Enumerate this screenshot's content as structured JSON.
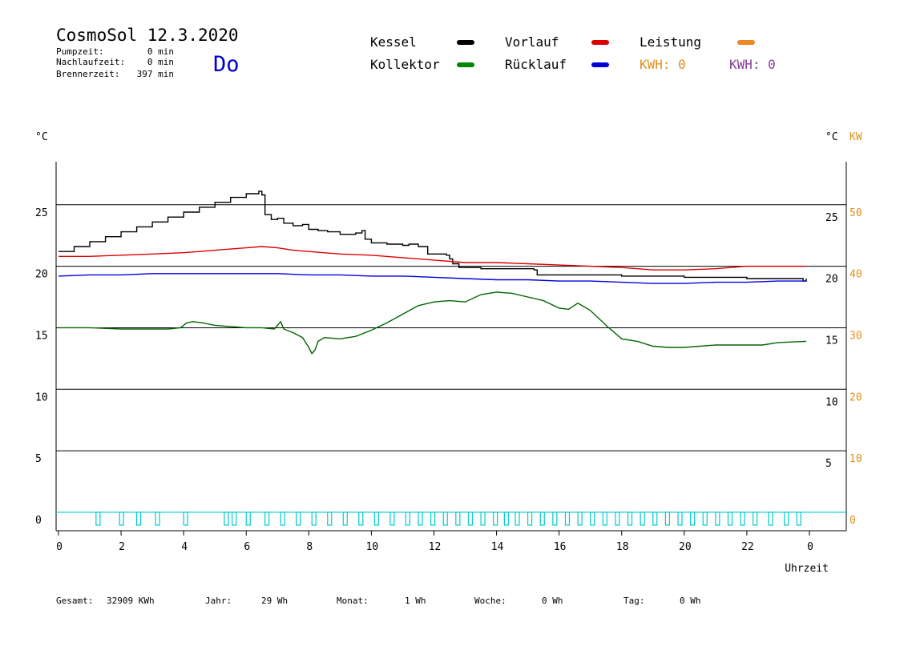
{
  "header": {
    "title": "CosmoSol 12.3.2020",
    "day": "Do",
    "info": [
      {
        "label": "Pumpzeit:",
        "value": "0 min"
      },
      {
        "label": "Nachlaufzeit:",
        "value": "0 min"
      },
      {
        "label": "Brennerzeit:",
        "value": "397 min"
      }
    ]
  },
  "legend": {
    "items": [
      {
        "label": "Kessel",
        "color": "#000000"
      },
      {
        "label": "Vorlauf",
        "color": "#dd0000"
      },
      {
        "label": "Leistung",
        "color": "#ee8822"
      },
      {
        "label": "Kollektor",
        "color": "#008800"
      },
      {
        "label": "Rücklauf",
        "color": "#0000dd"
      }
    ],
    "kwh_orange": "KWH: 0",
    "kwh_purple": "KWH: 0"
  },
  "axes": {
    "left_unit": "°C",
    "right_unit": "°C",
    "right_unit2": "KW",
    "xlabel": "Uhrzeit"
  },
  "footer": [
    {
      "label": "Gesamt:",
      "value": "32909 KWh"
    },
    {
      "label": "Jahr:",
      "value": "29 Wh"
    },
    {
      "label": "Monat:",
      "value": "1 Wh"
    },
    {
      "label": "Woche:",
      "value": "0 Wh"
    },
    {
      "label": "Tag:",
      "value": "0 Wh"
    }
  ],
  "chart_data": {
    "type": "line",
    "x_range": [
      0,
      24
    ],
    "y_left_range": [
      -1.5,
      28.5
    ],
    "x_ticks": [
      "0",
      "2",
      "4",
      "6",
      "8",
      "10",
      "12",
      "14",
      "16",
      "18",
      "20",
      "22",
      "0"
    ],
    "y_left_ticks": [
      "0",
      "5",
      "10",
      "15",
      "20",
      "25"
    ],
    "y_right_ticks": [
      "5",
      "10",
      "15",
      "20",
      "25"
    ],
    "y_right_kw_ticks": [
      "0",
      "10",
      "20",
      "30",
      "40",
      "50"
    ],
    "grid": true,
    "series": [
      {
        "name": "Kessel",
        "color": "#000000",
        "step": true,
        "points": [
          [
            0,
            21.2
          ],
          [
            0.5,
            21.6
          ],
          [
            1,
            22.0
          ],
          [
            1.5,
            22.4
          ],
          [
            2,
            22.8
          ],
          [
            2.5,
            23.2
          ],
          [
            3,
            23.6
          ],
          [
            3.5,
            24.0
          ],
          [
            4,
            24.4
          ],
          [
            4.5,
            24.8
          ],
          [
            5,
            25.2
          ],
          [
            5.5,
            25.6
          ],
          [
            6,
            25.9
          ],
          [
            6.4,
            26.1
          ],
          [
            6.5,
            25.8
          ],
          [
            6.6,
            24.2
          ],
          [
            6.8,
            23.8
          ],
          [
            7,
            23.9
          ],
          [
            7.2,
            23.5
          ],
          [
            7.5,
            23.3
          ],
          [
            7.8,
            23.4
          ],
          [
            8,
            23.0
          ],
          [
            8.3,
            22.9
          ],
          [
            8.6,
            22.8
          ],
          [
            9,
            22.6
          ],
          [
            9.5,
            22.7
          ],
          [
            9.7,
            22.9
          ],
          [
            9.8,
            22.2
          ],
          [
            10,
            21.9
          ],
          [
            10.5,
            21.8
          ],
          [
            11,
            21.7
          ],
          [
            11.2,
            21.8
          ],
          [
            11.5,
            21.6
          ],
          [
            11.8,
            21.0
          ],
          [
            12,
            21.0
          ],
          [
            12.4,
            20.9
          ],
          [
            12.5,
            20.6
          ],
          [
            12.6,
            20.2
          ],
          [
            12.8,
            19.9
          ],
          [
            13.5,
            19.8
          ],
          [
            14.5,
            19.8
          ],
          [
            15,
            19.8
          ],
          [
            15.2,
            19.7
          ],
          [
            15.3,
            19.3
          ],
          [
            16,
            19.3
          ],
          [
            18,
            19.2
          ],
          [
            20,
            19.1
          ],
          [
            22,
            19.0
          ],
          [
            23.6,
            19.0
          ],
          [
            23.8,
            18.8
          ],
          [
            23.9,
            19.0
          ]
        ]
      },
      {
        "name": "Vorlauf",
        "color": "#dd0000",
        "points": [
          [
            0,
            20.8
          ],
          [
            1,
            20.8
          ],
          [
            2,
            20.9
          ],
          [
            3,
            21.0
          ],
          [
            4,
            21.1
          ],
          [
            5,
            21.3
          ],
          [
            6,
            21.5
          ],
          [
            6.5,
            21.6
          ],
          [
            7,
            21.5
          ],
          [
            7.5,
            21.3
          ],
          [
            8,
            21.2
          ],
          [
            9,
            21.0
          ],
          [
            10,
            20.9
          ],
          [
            11,
            20.7
          ],
          [
            12,
            20.5
          ],
          [
            13,
            20.3
          ],
          [
            14,
            20.3
          ],
          [
            15,
            20.2
          ],
          [
            16,
            20.1
          ],
          [
            17,
            20.0
          ],
          [
            18,
            19.9
          ],
          [
            19,
            19.7
          ],
          [
            20,
            19.7
          ],
          [
            21,
            19.8
          ],
          [
            22,
            20.0
          ],
          [
            23,
            20.0
          ],
          [
            23.9,
            20.0
          ]
        ]
      },
      {
        "name": "Rücklauf",
        "color": "#0000dd",
        "points": [
          [
            0,
            19.2
          ],
          [
            1,
            19.3
          ],
          [
            2,
            19.3
          ],
          [
            3,
            19.4
          ],
          [
            4,
            19.4
          ],
          [
            5,
            19.4
          ],
          [
            6,
            19.4
          ],
          [
            7,
            19.4
          ],
          [
            8,
            19.3
          ],
          [
            9,
            19.3
          ],
          [
            10,
            19.2
          ],
          [
            11,
            19.2
          ],
          [
            12,
            19.1
          ],
          [
            13,
            19.0
          ],
          [
            14,
            18.9
          ],
          [
            15,
            18.9
          ],
          [
            16,
            18.8
          ],
          [
            17,
            18.8
          ],
          [
            18,
            18.7
          ],
          [
            19,
            18.6
          ],
          [
            20,
            18.6
          ],
          [
            21,
            18.7
          ],
          [
            22,
            18.7
          ],
          [
            23,
            18.8
          ],
          [
            23.9,
            18.8
          ]
        ]
      },
      {
        "name": "Kollektor",
        "color": "#006600",
        "points": [
          [
            0,
            15.0
          ],
          [
            1,
            15.0
          ],
          [
            2,
            14.9
          ],
          [
            3,
            14.9
          ],
          [
            3.5,
            14.9
          ],
          [
            3.9,
            15.0
          ],
          [
            4.1,
            15.4
          ],
          [
            4.3,
            15.5
          ],
          [
            4.6,
            15.4
          ],
          [
            5,
            15.2
          ],
          [
            5.5,
            15.1
          ],
          [
            6,
            15.0
          ],
          [
            6.5,
            15.0
          ],
          [
            6.9,
            14.9
          ],
          [
            7.1,
            15.5
          ],
          [
            7.2,
            14.9
          ],
          [
            7.5,
            14.6
          ],
          [
            7.8,
            14.2
          ],
          [
            8,
            13.4
          ],
          [
            8.1,
            12.9
          ],
          [
            8.2,
            13.2
          ],
          [
            8.3,
            13.9
          ],
          [
            8.5,
            14.2
          ],
          [
            9,
            14.1
          ],
          [
            9.5,
            14.3
          ],
          [
            10,
            14.8
          ],
          [
            10.5,
            15.4
          ],
          [
            11,
            16.1
          ],
          [
            11.5,
            16.8
          ],
          [
            12,
            17.1
          ],
          [
            12.5,
            17.2
          ],
          [
            13,
            17.1
          ],
          [
            13.5,
            17.7
          ],
          [
            14,
            17.9
          ],
          [
            14.5,
            17.8
          ],
          [
            15,
            17.5
          ],
          [
            15.5,
            17.2
          ],
          [
            16,
            16.6
          ],
          [
            16.3,
            16.5
          ],
          [
            16.6,
            17.0
          ],
          [
            17,
            16.4
          ],
          [
            17.5,
            15.2
          ],
          [
            18,
            14.1
          ],
          [
            18.5,
            13.9
          ],
          [
            19,
            13.5
          ],
          [
            19.5,
            13.4
          ],
          [
            20,
            13.4
          ],
          [
            21,
            13.6
          ],
          [
            22,
            13.6
          ],
          [
            22.5,
            13.6
          ],
          [
            23,
            13.8
          ],
          [
            23.9,
            13.9
          ]
        ]
      }
    ],
    "pump_signal": {
      "name": "Pumpe",
      "color": "#00cccc",
      "pulses": [
        1.2,
        1.95,
        2.5,
        3.1,
        4.0,
        5.3,
        5.55,
        6.0,
        6.6,
        7.1,
        7.6,
        8.1,
        8.6,
        9.1,
        9.6,
        10.1,
        10.6,
        11.1,
        11.5,
        11.9,
        12.3,
        12.7,
        13.1,
        13.5,
        13.9,
        14.25,
        14.6,
        15.0,
        15.4,
        15.8,
        16.2,
        16.6,
        17.0,
        17.4,
        17.8,
        18.2,
        18.6,
        19.0,
        19.4,
        19.8,
        20.2,
        20.6,
        21.0,
        21.4,
        21.8,
        22.2,
        22.7,
        23.2,
        23.6
      ]
    }
  }
}
